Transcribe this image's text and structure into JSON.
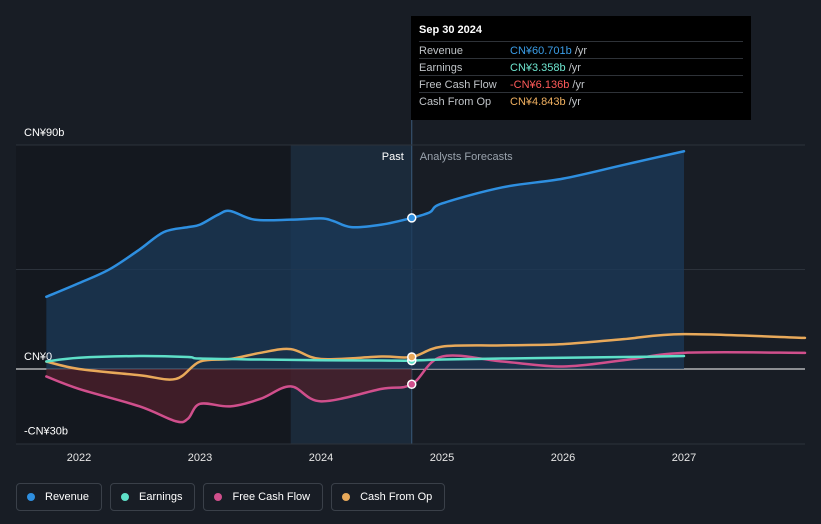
{
  "tooltip": {
    "date": "Sep 30 2024",
    "rows": [
      {
        "name": "Revenue",
        "value": "CN¥60.701b",
        "unit": " /yr",
        "color": "#3b9ee8"
      },
      {
        "name": "Earnings",
        "value": "CN¥3.358b",
        "unit": " /yr",
        "color": "#6ee6d0"
      },
      {
        "name": "Free Cash Flow",
        "value": "-CN¥6.136b",
        "unit": " /yr",
        "color": "#ff5a5a"
      },
      {
        "name": "Cash From Op",
        "value": "CN¥4.843b",
        "unit": " /yr",
        "color": "#f0b060"
      }
    ]
  },
  "legend": [
    {
      "label": "Revenue",
      "color": "#2e8fe0"
    },
    {
      "label": "Earnings",
      "color": "#5ee0c8"
    },
    {
      "label": "Free Cash Flow",
      "color": "#d04f8c"
    },
    {
      "label": "Cash From Op",
      "color": "#e8a95a"
    }
  ],
  "chart_data": {
    "type": "line",
    "title": "",
    "xlabel": "",
    "ylabel": "",
    "xlim": [
      2021.73,
      2028.0
    ],
    "ylim": [
      -30,
      90
    ],
    "y_tick_labels": [
      {
        "value": 90,
        "label": "CN¥90b"
      },
      {
        "value": 0,
        "label": "CN¥0"
      },
      {
        "value": -30,
        "label": "-CN¥30b"
      }
    ],
    "x_tick_labels": [
      {
        "value": 2022,
        "label": "2022"
      },
      {
        "value": 2023,
        "label": "2023"
      },
      {
        "value": 2024,
        "label": "2024"
      },
      {
        "value": 2025,
        "label": "2025"
      },
      {
        "value": 2026,
        "label": "2026"
      },
      {
        "value": 2027,
        "label": "2027"
      }
    ],
    "past_label": "Past",
    "forecast_label": "Analysts Forecasts",
    "highlight_start": 2023.75,
    "past_end": 2024.75,
    "colors": {
      "revenue": "#2e8fe0",
      "earnings": "#5ee0c8",
      "fcf": "#d04f8c",
      "cfo": "#e8a95a",
      "revenue_fill": "#1b3a5a",
      "fcf_fill": "#4a1f2a",
      "grid": "#2c323b",
      "zero": "#ffffff"
    },
    "series": [
      {
        "name": "Revenue",
        "key": "revenue",
        "points": [
          [
            2021.73,
            29
          ],
          [
            2022.0,
            34.5
          ],
          [
            2022.25,
            40
          ],
          [
            2022.5,
            48
          ],
          [
            2022.7,
            55
          ],
          [
            2022.9,
            57
          ],
          [
            2023.0,
            58
          ],
          [
            2023.15,
            62
          ],
          [
            2023.25,
            63.5
          ],
          [
            2023.45,
            60
          ],
          [
            2023.75,
            60
          ],
          [
            2024.0,
            60.5
          ],
          [
            2024.1,
            59.5
          ],
          [
            2024.25,
            57
          ],
          [
            2024.5,
            58
          ],
          [
            2024.75,
            60.7
          ],
          [
            2024.9,
            63
          ],
          [
            2025.0,
            66.5
          ],
          [
            2025.5,
            73
          ],
          [
            2026.0,
            76.5
          ],
          [
            2026.5,
            82
          ],
          [
            2027.0,
            87.5
          ]
        ],
        "forecast_end": 2027.0
      },
      {
        "name": "Earnings",
        "key": "earnings",
        "points": [
          [
            2021.73,
            3
          ],
          [
            2022.0,
            4.5
          ],
          [
            2022.5,
            5.2
          ],
          [
            2022.9,
            4.8
          ],
          [
            2023.0,
            4.2
          ],
          [
            2023.5,
            3.8
          ],
          [
            2024.0,
            3.5
          ],
          [
            2024.5,
            3.4
          ],
          [
            2024.75,
            3.36
          ],
          [
            2025.0,
            3.8
          ],
          [
            2025.5,
            4.2
          ],
          [
            2026.0,
            4.5
          ],
          [
            2026.5,
            4.8
          ],
          [
            2027.0,
            5.2
          ]
        ],
        "forecast_end": 2027.0
      },
      {
        "name": "Free Cash Flow",
        "key": "fcf",
        "points": [
          [
            2021.73,
            -3
          ],
          [
            2022.0,
            -8
          ],
          [
            2022.5,
            -15
          ],
          [
            2022.8,
            -21
          ],
          [
            2022.9,
            -20
          ],
          [
            2023.0,
            -14
          ],
          [
            2023.25,
            -15
          ],
          [
            2023.5,
            -12
          ],
          [
            2023.75,
            -7
          ],
          [
            2024.0,
            -13
          ],
          [
            2024.5,
            -8
          ],
          [
            2024.75,
            -6.14
          ],
          [
            2025.0,
            5
          ],
          [
            2025.5,
            3
          ],
          [
            2026.0,
            1
          ],
          [
            2026.5,
            3.5
          ],
          [
            2027.0,
            6.5
          ],
          [
            2028.0,
            6.5
          ]
        ],
        "forecast_end": 2028.0
      },
      {
        "name": "Cash From Op",
        "key": "cfo",
        "points": [
          [
            2021.73,
            3
          ],
          [
            2022.0,
            0
          ],
          [
            2022.5,
            -2.5
          ],
          [
            2022.8,
            -4
          ],
          [
            2023.0,
            3
          ],
          [
            2023.25,
            4
          ],
          [
            2023.5,
            6.5
          ],
          [
            2023.75,
            8
          ],
          [
            2024.0,
            4
          ],
          [
            2024.5,
            5
          ],
          [
            2024.75,
            4.84
          ],
          [
            2025.0,
            9
          ],
          [
            2025.5,
            9.5
          ],
          [
            2026.0,
            10
          ],
          [
            2026.5,
            12
          ],
          [
            2027.0,
            14
          ],
          [
            2028.0,
            12.5
          ]
        ],
        "forecast_end": 2028.0
      }
    ],
    "markers": [
      {
        "key": "revenue",
        "x": 2024.75,
        "y": 60.7
      },
      {
        "key": "earnings",
        "x": 2024.75,
        "y": 3.36
      },
      {
        "key": "fcf",
        "x": 2024.75,
        "y": -6.14
      },
      {
        "key": "cfo",
        "x": 2024.75,
        "y": 4.84
      }
    ]
  }
}
